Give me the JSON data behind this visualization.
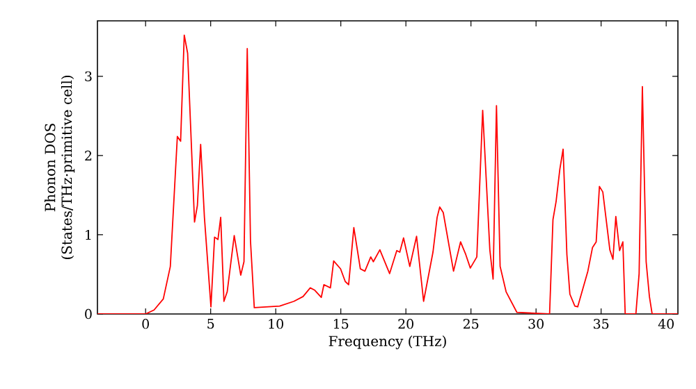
{
  "chart_data": {
    "type": "line",
    "xlabel": "Frequency (THz)",
    "ylabel": "Phonon DOS (States/THz·primitive cell)",
    "xlim": [
      -3.7,
      40.9
    ],
    "ylim": [
      0,
      3.7
    ],
    "xticks": [
      0,
      5,
      10,
      15,
      20,
      25,
      30,
      35,
      40
    ],
    "yticks": [
      0,
      1,
      2,
      3
    ],
    "marker": "none",
    "line_style": "solid",
    "series": [
      {
        "color": "#ff0000",
        "x": [
          -3.7,
          0,
          0.65,
          1.36,
          1.9,
          2.44,
          2.69,
          2.97,
          3.23,
          3.76,
          3.98,
          4.23,
          4.52,
          5.02,
          5.3,
          5.56,
          5.77,
          6.02,
          6.27,
          6.81,
          7.31,
          7.56,
          7.81,
          8.06,
          8.35,
          10.3,
          11.4,
          12.1,
          12.65,
          13.0,
          13.5,
          13.7,
          14.2,
          14.45,
          14.98,
          15.34,
          15.6,
          16.0,
          16.5,
          16.85,
          17.3,
          17.5,
          18.0,
          18.75,
          19.3,
          19.53,
          19.82,
          20.3,
          20.82,
          21.36,
          22.08,
          22.4,
          22.6,
          22.87,
          23.66,
          24.2,
          24.6,
          24.95,
          25.45,
          25.9,
          26.45,
          26.7,
          26.96,
          27.24,
          27.7,
          28.53,
          31.04,
          31.3,
          31.54,
          31.83,
          32.08,
          32.37,
          32.6,
          32.98,
          33.2,
          33.98,
          34.34,
          34.62,
          34.87,
          35.13,
          35.67,
          35.91,
          36.13,
          36.42,
          36.67,
          36.85,
          37.67,
          37.92,
          38.17,
          38.46,
          38.71,
          38.92,
          40.9
        ],
        "values": [
          0,
          0,
          0.05,
          0.19,
          0.6,
          2.24,
          2.18,
          3.52,
          3.29,
          1.16,
          1.37,
          2.14,
          1.22,
          0.09,
          0.97,
          0.94,
          1.22,
          0.16,
          0.28,
          0.99,
          0.49,
          0.66,
          3.35,
          0.92,
          0.08,
          0.1,
          0.16,
          0.22,
          0.33,
          0.3,
          0.21,
          0.37,
          0.33,
          0.67,
          0.57,
          0.41,
          0.37,
          1.09,
          0.57,
          0.54,
          0.72,
          0.66,
          0.81,
          0.51,
          0.8,
          0.78,
          0.96,
          0.6,
          0.98,
          0.16,
          0.78,
          1.22,
          1.35,
          1.28,
          0.54,
          0.91,
          0.75,
          0.58,
          0.72,
          2.57,
          0.81,
          0.44,
          2.63,
          0.6,
          0.28,
          0.02,
          0,
          1.19,
          1.42,
          1.83,
          2.08,
          0.75,
          0.25,
          0.1,
          0.09,
          0.54,
          0.84,
          0.91,
          1.61,
          1.54,
          0.81,
          0.69,
          1.23,
          0.8,
          0.91,
          0,
          0,
          0.51,
          2.87,
          0.66,
          0.22,
          0,
          0
        ]
      }
    ]
  }
}
